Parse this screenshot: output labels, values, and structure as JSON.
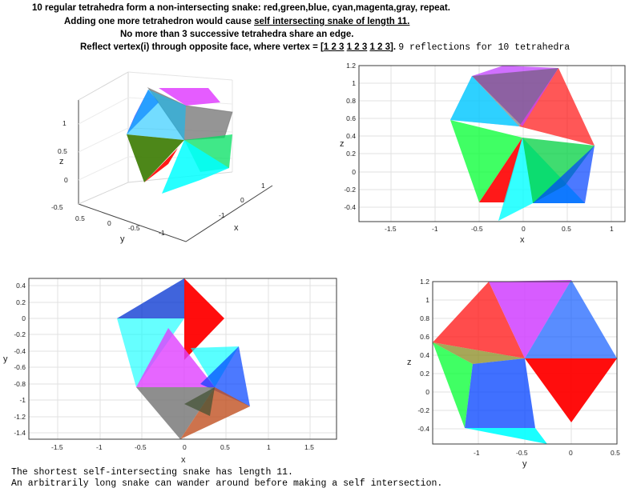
{
  "header": {
    "line1": "10 regular tetrahedra form a non-intersecting snake: red,green,blue, cyan,magenta,gray, repeat.",
    "line2_pre": "Adding one more tetrahedron would cause ",
    "line2_link": "self intersecting snake of length 11.",
    "line3": "No more than 3 successive tetrahedra share an edge.",
    "line4_pre": "Reflect vertex(i) through opposite face, where vertex = [",
    "line4_g1": "1 2 3",
    "line4_g2": "1 2 3",
    "line4_g3": "1 2 3",
    "line4_post": "].",
    "line4_mono": "9 reflections for 10 tetrahedra"
  },
  "footer": {
    "line1": "The shortest self-intersecting snake has length 11.",
    "line2": "An arbitrarily long snake can wander around before making a self intersection."
  },
  "colors": {
    "red": "#ff0000",
    "green": "#00e000",
    "blue": "#0030ff",
    "cyan": "#00ffff",
    "magenta": "#e040ff",
    "gray": "#7a7a7a"
  },
  "chart_data": [
    {
      "type": "scatter",
      "view": "3d",
      "xlabel": "x",
      "ylabel": "y",
      "zlabel": "z",
      "z_ticks": [
        "-0.5",
        "0",
        "0.5",
        "1"
      ],
      "x_ticks": [
        "-1",
        "0",
        "1"
      ],
      "y_ticks": [
        "0.5",
        "0",
        "-0.5",
        "-1"
      ],
      "series_colors": [
        "red",
        "green",
        "blue",
        "cyan",
        "magenta",
        "gray",
        "red",
        "green",
        "blue",
        "cyan"
      ]
    },
    {
      "type": "scatter",
      "view": "xz",
      "xlabel": "x",
      "ylabel": "z",
      "x_ticks": [
        "-1.5",
        "-1",
        "-0.5",
        "0",
        "0.5",
        "1"
      ],
      "y_ticks": [
        "1.2",
        "1",
        "0.8",
        "0.6",
        "0.4",
        "0.2",
        "0",
        "-0.2",
        "-0.4"
      ],
      "xlim": [
        -1.9,
        1.15
      ],
      "ylim": [
        -0.5,
        1.2
      ]
    },
    {
      "type": "scatter",
      "view": "xy",
      "xlabel": "x",
      "ylabel": "y",
      "x_ticks": [
        "-1.5",
        "-1",
        "-0.5",
        "0",
        "0.5",
        "1",
        "1.5"
      ],
      "y_ticks": [
        "0.4",
        "0.2",
        "0",
        "-0.2",
        "-0.4",
        "-0.6",
        "-0.8",
        "-1",
        "-1.2",
        "-1.4"
      ],
      "xlim": [
        -1.9,
        1.9
      ],
      "ylim": [
        -1.5,
        0.48
      ]
    },
    {
      "type": "scatter",
      "view": "yz",
      "xlabel": "y",
      "ylabel": "z",
      "x_ticks": [
        "-1",
        "-0.5",
        "0",
        "0.5"
      ],
      "y_ticks": [
        "1.2",
        "1",
        "0.8",
        "0.6",
        "0.4",
        "0.2",
        "0",
        "-0.2",
        "-0.4"
      ],
      "xlim": [
        -1.5,
        0.5
      ],
      "ylim": [
        -0.5,
        1.22
      ]
    }
  ]
}
